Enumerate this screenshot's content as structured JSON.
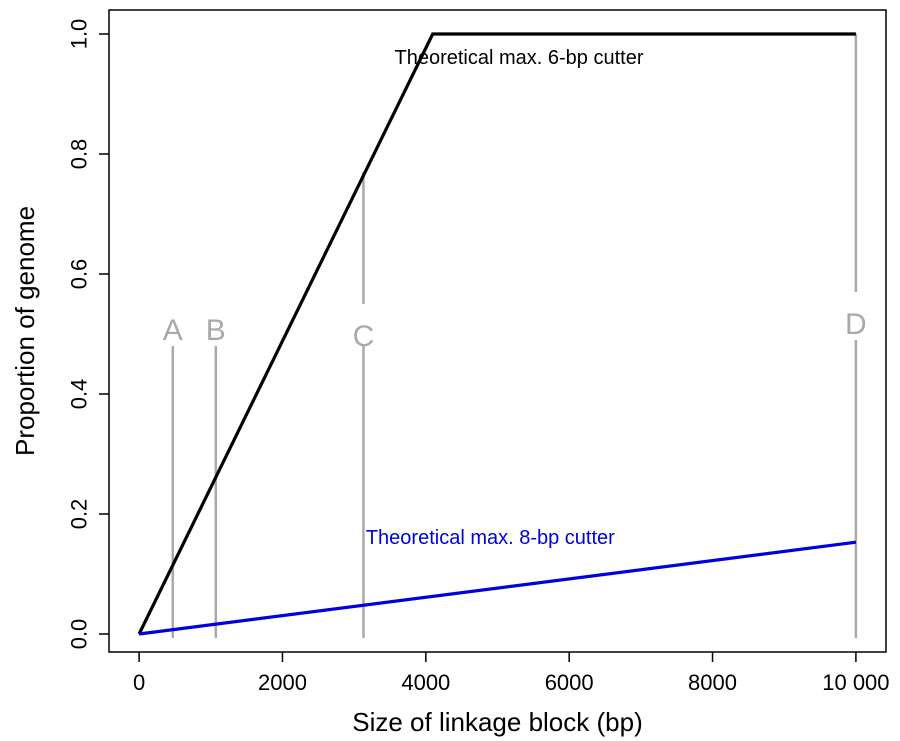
{
  "chart_data": {
    "type": "line",
    "xlabel": "Size of linkage block (bp)",
    "ylabel": "Proportion of genome",
    "xlim": [
      -420,
      10420
    ],
    "ylim": [
      -0.03,
      1.04
    ],
    "xticks": [
      0,
      2000,
      4000,
      6000,
      8000,
      10000
    ],
    "xtick_labels": [
      "0",
      "2000",
      "4000",
      "6000",
      "8000",
      "10 000"
    ],
    "yticks": [
      0.0,
      0.2,
      0.4,
      0.6,
      0.8,
      1.0
    ],
    "ytick_labels": [
      "0.0",
      "0.2",
      "0.4",
      "0.6",
      "0.8",
      "1.0"
    ],
    "grid": false,
    "series": [
      {
        "name": "Theoretical max. 6-bp cutter",
        "color": "#000000",
        "x": [
          0,
          4096,
          10000
        ],
        "y": [
          0.0,
          1.0,
          1.0
        ],
        "label_at": [
          5300,
          0.95
        ]
      },
      {
        "name": "Theoretical max. 8-bp cutter",
        "color": "#0000dd",
        "x": [
          0,
          10000
        ],
        "y": [
          0.0,
          0.153
        ],
        "label_at": [
          4900,
          0.15
        ]
      }
    ],
    "reference_lines": [
      {
        "label": "A",
        "x": 470,
        "y_top": 0.48,
        "label_y": 0.49
      },
      {
        "label": "B",
        "x": 1070,
        "y_top": 0.48,
        "label_y": 0.49
      },
      {
        "label": "C",
        "x": 3130,
        "y_top": 0.77,
        "label_y": 0.48,
        "gap": [
          0.48,
          0.55
        ]
      },
      {
        "label": "D",
        "x": 10000,
        "y_top": 1.0,
        "label_y": 0.5,
        "gap": [
          0.49,
          0.57
        ]
      }
    ],
    "ref_color": "#a9a9a9"
  }
}
